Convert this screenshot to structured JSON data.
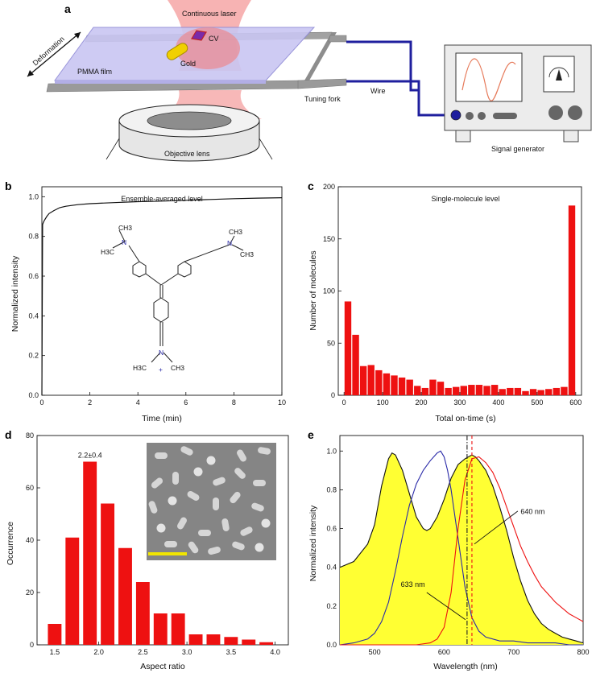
{
  "panel_a": {
    "label": "a",
    "laser_label": "Continuous laser",
    "cv_label": "CV",
    "gold_label": "Gold",
    "film_label": "PMMA film",
    "deformation_label": "Deformation",
    "tuning_fork_label": "Tuning fork",
    "wire_label": "Wire",
    "objective_label": "Objective lens",
    "generator_label": "Signal generator",
    "colors": {
      "laser": "#f27f7f",
      "film": "#c9c6f2",
      "wire": "#1f1f9e",
      "gold": "#f0d000",
      "fork": "#9a9a9a"
    }
  },
  "panel_b": {
    "label": "b",
    "molecule_labels": {
      "h3c": "H3C",
      "ch3": "CH3",
      "n": "N",
      "plus": "+"
    },
    "chart_data": {
      "type": "line",
      "annotation": "Ensemble-averaged level",
      "xlabel": "Time (min)",
      "ylabel": "Normalized intensity",
      "xlim": [
        0,
        10
      ],
      "ylim": [
        0,
        1.05
      ],
      "xticks": [
        0,
        2,
        4,
        6,
        8,
        10
      ],
      "yticks": [
        0.0,
        0.2,
        0.4,
        0.6,
        0.8,
        1.0
      ],
      "series": [
        {
          "x": [
            0,
            0.03,
            0.06,
            0.1,
            0.2,
            0.3,
            0.5,
            0.75,
            1,
            1.5,
            2,
            3,
            4,
            5,
            6,
            7,
            8,
            9,
            10
          ],
          "values": [
            0,
            0.86,
            0.87,
            0.88,
            0.9,
            0.915,
            0.93,
            0.945,
            0.952,
            0.96,
            0.965,
            0.97,
            0.975,
            0.978,
            0.982,
            0.986,
            0.99,
            0.993,
            0.995
          ]
        }
      ]
    }
  },
  "panel_c": {
    "label": "c",
    "chart_data": {
      "type": "bar",
      "annotation": "Single-molecule level",
      "xlabel": "Total on-time (s)",
      "ylabel": "Number of molecules",
      "xlim": [
        -15,
        615
      ],
      "ylim": [
        0,
        200
      ],
      "xticks": [
        0,
        100,
        200,
        300,
        400,
        500,
        600
      ],
      "yticks": [
        0,
        50,
        100,
        150,
        200
      ],
      "bin_width": 20,
      "x": [
        10,
        30,
        50,
        70,
        90,
        110,
        130,
        150,
        170,
        190,
        210,
        230,
        250,
        270,
        290,
        310,
        330,
        350,
        370,
        390,
        410,
        430,
        450,
        470,
        490,
        510,
        530,
        550,
        570,
        590
      ],
      "values": [
        90,
        58,
        28,
        29,
        24,
        21,
        19,
        17,
        15,
        9,
        7,
        15,
        13,
        7,
        8,
        9,
        10,
        10,
        9,
        10,
        6,
        7,
        7,
        4,
        6,
        5,
        6,
        7,
        8,
        182
      ],
      "color": "#ee1111"
    }
  },
  "panel_d": {
    "label": "d",
    "chart_data": {
      "type": "bar",
      "annotation": "2.2±0.4",
      "xlabel": "Aspect ratio",
      "ylabel": "Occurrence",
      "xlim": [
        1.3,
        4.15
      ],
      "ylim": [
        0,
        80
      ],
      "xticks": [
        1.5,
        2.0,
        2.5,
        3.0,
        3.5,
        4.0
      ],
      "xtick_labels": [
        "1.5",
        "2.0",
        "2.5",
        "3.0",
        "3.5",
        "4.0"
      ],
      "yticks": [
        0,
        20,
        40,
        60,
        80
      ],
      "bin_width": 0.2,
      "x": [
        1.5,
        1.7,
        1.9,
        2.1,
        2.3,
        2.5,
        2.7,
        2.9,
        3.1,
        3.3,
        3.5,
        3.7,
        3.9
      ],
      "values": [
        8,
        41,
        70,
        54,
        37,
        24,
        12,
        12,
        4,
        4,
        3,
        2,
        1
      ],
      "color": "#ee1111"
    },
    "inset": {
      "background": "#858585",
      "scalebar_color": "#f2e600"
    }
  },
  "panel_e": {
    "label": "e",
    "chart_data": {
      "type": "line",
      "xlabel": "Wavelength (nm)",
      "ylabel": "Normalized intensity",
      "xlim": [
        450,
        800
      ],
      "ylim": [
        0,
        1.08
      ],
      "xticks": [
        500,
        600,
        700,
        800
      ],
      "yticks": [
        0.0,
        0.2,
        0.4,
        0.6,
        0.8,
        1.0
      ],
      "annotations": [
        {
          "text": "633 nm",
          "x": 633
        },
        {
          "text": "640 nm",
          "x": 640
        }
      ],
      "series": [
        {
          "color": "#111111",
          "fill": "#ffff33",
          "x": [
            450,
            470,
            490,
            500,
            510,
            520,
            525,
            530,
            540,
            550,
            560,
            570,
            575,
            580,
            590,
            600,
            610,
            620,
            630,
            640,
            645,
            650,
            660,
            670,
            680,
            690,
            700,
            710,
            720,
            730,
            740,
            750,
            760,
            770,
            780,
            790,
            800
          ],
          "values": [
            0.4,
            0.43,
            0.52,
            0.62,
            0.82,
            0.96,
            0.99,
            0.98,
            0.9,
            0.78,
            0.66,
            0.6,
            0.59,
            0.6,
            0.66,
            0.75,
            0.86,
            0.93,
            0.96,
            0.98,
            0.97,
            0.95,
            0.9,
            0.82,
            0.71,
            0.59,
            0.45,
            0.33,
            0.23,
            0.16,
            0.11,
            0.08,
            0.06,
            0.04,
            0.03,
            0.02,
            0.01
          ]
        },
        {
          "color": "#2a2aa8",
          "x": [
            450,
            470,
            490,
            500,
            510,
            520,
            530,
            540,
            550,
            560,
            570,
            580,
            590,
            595,
            600,
            605,
            610,
            620,
            630,
            640,
            650,
            660,
            680,
            700,
            720,
            740,
            760,
            780,
            800
          ],
          "values": [
            0.0,
            0.01,
            0.03,
            0.06,
            0.12,
            0.22,
            0.38,
            0.56,
            0.72,
            0.83,
            0.9,
            0.95,
            0.99,
            1.0,
            0.97,
            0.9,
            0.8,
            0.55,
            0.3,
            0.14,
            0.07,
            0.04,
            0.02,
            0.02,
            0.01,
            0.01,
            0.01,
            0.0,
            0.0
          ]
        },
        {
          "color": "#ee1111",
          "x": [
            450,
            560,
            580,
            590,
            600,
            610,
            620,
            630,
            640,
            650,
            660,
            670,
            680,
            690,
            700,
            710,
            720,
            730,
            740,
            750,
            760,
            770,
            780,
            790,
            800
          ],
          "values": [
            0.0,
            0.0,
            0.01,
            0.03,
            0.09,
            0.27,
            0.6,
            0.85,
            0.96,
            0.97,
            0.94,
            0.89,
            0.81,
            0.71,
            0.61,
            0.51,
            0.43,
            0.36,
            0.3,
            0.26,
            0.22,
            0.19,
            0.16,
            0.14,
            0.12
          ]
        }
      ],
      "vlines": [
        {
          "x": 633,
          "color": "#222222",
          "dash": "dashdot"
        },
        {
          "x": 640,
          "color": "#ee1111",
          "dash": "dash"
        }
      ]
    }
  }
}
